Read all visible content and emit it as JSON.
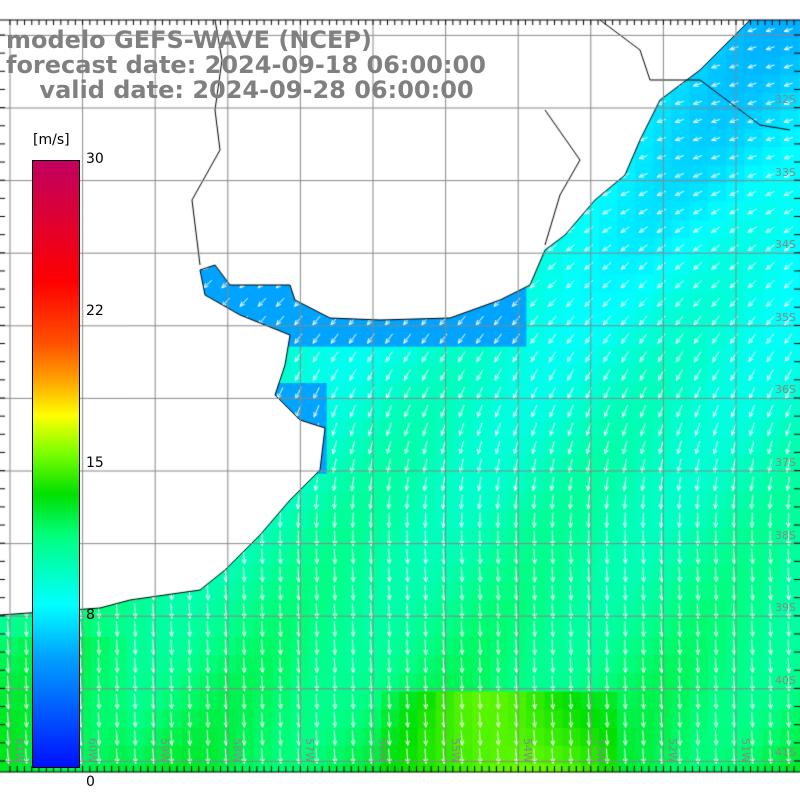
{
  "title": {
    "model": "modelo GEFS-WAVE (NCEP)",
    "forecast": "forecast date: 2024-09-18 06:00:00",
    "valid": "    valid date: 2024-09-28 06:00:00"
  },
  "colorbar": {
    "unit": "[m/s]",
    "labels": [
      "30",
      "22",
      "15",
      "8",
      "0"
    ],
    "min": 0,
    "max": 30
  },
  "latitudes": [
    "32S",
    "33S",
    "34S",
    "35S",
    "36S",
    "37S",
    "38S",
    "39S",
    "40S",
    "41S"
  ],
  "longitudes": [
    "61W",
    "60W",
    "59W",
    "58W",
    "57W",
    "56W",
    "55W",
    "54W",
    "53W",
    "52W",
    "51W"
  ]
}
